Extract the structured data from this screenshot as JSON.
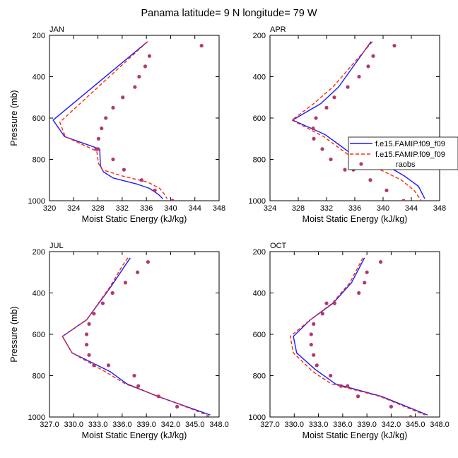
{
  "title": "Panama  latitude= 9 N longitude= 79 W",
  "legend_entries": [
    "f.e15.FAMIP.f09_f09",
    "f.e15.FAMIP.f09_f09",
    "raobs"
  ],
  "colors": {
    "model_a": "#1a1aff",
    "model_b": "#ff2a0a",
    "obs": "#b03a70",
    "axis": "#000000"
  },
  "chart_data": [
    {
      "type": "line",
      "panel_label": "JAN",
      "xlabel": "Moist Static Energy (kJ/kg)",
      "ylabel": "Pressure (mb)",
      "xlim": [
        320,
        348
      ],
      "ylim": [
        1000,
        200
      ],
      "xticks": [
        320,
        324,
        328,
        332,
        336,
        340,
        344,
        348
      ],
      "xtick_labels": [
        "320",
        "324",
        "328",
        "332",
        "336",
        "340",
        "344",
        "348"
      ],
      "yticks": [
        200,
        400,
        600,
        800,
        1000
      ],
      "ytick_labels": [
        "200",
        "400",
        "600",
        "800",
        "1000"
      ],
      "series": [
        {
          "name": "f.e15.FAMIP.f09_f09",
          "style": "solid",
          "x": [
            336.2,
            320.6,
            322.5,
            328.3,
            328.4,
            328.9,
            330.5,
            334.5,
            336.5,
            338.0,
            338.7
          ],
          "y": [
            230,
            610,
            690,
            750,
            830,
            860,
            890,
            920,
            940,
            970,
            990
          ]
        },
        {
          "name": "f.e15.FAMIP.f09_f09",
          "style": "dashed",
          "x": [
            336.2,
            321.7,
            322.6,
            327.8,
            328.1,
            328.7,
            332.0,
            336.2,
            338.2,
            339.0,
            339.4
          ],
          "y": [
            230,
            620,
            690,
            760,
            820,
            850,
            880,
            910,
            940,
            970,
            990
          ]
        },
        {
          "name": "raobs",
          "style": "markers",
          "x": [
            345.1,
            336.5,
            335.8,
            334.8,
            334.1,
            332.1,
            330.5,
            329.3,
            328.6,
            328.1,
            327.7,
            328.0,
            330.5,
            332.3,
            335.2,
            337.4,
            340.3
          ],
          "y": [
            250,
            300,
            350,
            400,
            450,
            500,
            550,
            600,
            650,
            700,
            750,
            750,
            800,
            850,
            900,
            950,
            1000
          ]
        }
      ]
    },
    {
      "type": "line",
      "panel_label": "APR",
      "xlabel": "Moist Static Energy (kJ/kg)",
      "ylabel": "",
      "xlim": [
        324,
        348
      ],
      "ylim": [
        1000,
        200
      ],
      "xticks": [
        324,
        328,
        332,
        336,
        340,
        344,
        348
      ],
      "xtick_labels": [
        "324",
        "328",
        "332",
        "336",
        "340",
        "344",
        "348"
      ],
      "yticks": [
        200,
        400,
        600,
        800,
        1000
      ],
      "ytick_labels": [
        "200",
        "400",
        "600",
        "800",
        "1000"
      ],
      "series": [
        {
          "name": "f.e15.FAMIP.f09_f09",
          "style": "solid",
          "x": [
            338.3,
            333.7,
            331.2,
            327.2,
            331.8,
            333.8,
            335.0,
            339.5,
            343.0,
            345.0,
            345.9
          ],
          "y": [
            230,
            450,
            530,
            610,
            680,
            730,
            760,
            810,
            880,
            930,
            990
          ]
        },
        {
          "name": "f.e15.FAMIP.f09_f09",
          "style": "dashed",
          "x": [
            338.5,
            332.9,
            330.2,
            327.1,
            331.6,
            333.6,
            336.0,
            339.6,
            342.6,
            344.4,
            345.4
          ],
          "y": [
            230,
            450,
            530,
            610,
            690,
            740,
            800,
            850,
            900,
            950,
            1000
          ]
        },
        {
          "name": "raobs",
          "style": "markers",
          "x": [
            341.6,
            338.6,
            337.9,
            336.6,
            335.0,
            333.1,
            332.0,
            330.5,
            330.1,
            330.2,
            331.4,
            332.6,
            334.6,
            335.8,
            338.2,
            340.5,
            342.9
          ],
          "y": [
            250,
            300,
            350,
            400,
            450,
            500,
            550,
            600,
            650,
            700,
            750,
            800,
            850,
            850,
            900,
            950,
            1000
          ]
        }
      ]
    },
    {
      "type": "line",
      "panel_label": "JUL",
      "xlabel": "Moist Static Energy (kJ/kg)",
      "ylabel": "Pressure (mb)",
      "xlim": [
        327,
        348
      ],
      "ylim": [
        1000,
        200
      ],
      "xticks": [
        327,
        330,
        333,
        336,
        339,
        342,
        345,
        348
      ],
      "xtick_labels": [
        "327.0",
        "330.0",
        "333.0",
        "336.0",
        "339.0",
        "342.0",
        "345.0",
        "348.0"
      ],
      "yticks": [
        200,
        400,
        600,
        800,
        1000
      ],
      "ytick_labels": [
        "200",
        "400",
        "600",
        "800",
        "1000"
      ],
      "series": [
        {
          "name": "f.e15.FAMIP.f09_f09",
          "style": "solid",
          "x": [
            337.0,
            334.6,
            331.6,
            328.6,
            329.8,
            334.5,
            336.6,
            340.4,
            346.9
          ],
          "y": [
            230,
            370,
            530,
            610,
            690,
            780,
            840,
            900,
            990
          ]
        },
        {
          "name": "f.e15.FAMIP.f09_f09",
          "style": "dashed",
          "x": [
            336.7,
            336.0,
            334.5,
            331.6,
            328.6,
            329.8,
            334.3,
            336.4,
            340.5,
            346.5
          ],
          "y": [
            230,
            270,
            370,
            530,
            610,
            690,
            790,
            840,
            900,
            990
          ]
        },
        {
          "name": "raobs",
          "style": "markers",
          "x": [
            339.2,
            337.9,
            336.4,
            334.8,
            333.6,
            332.5,
            331.9,
            331.6,
            331.6,
            331.9,
            332.5,
            334.3,
            337.5,
            338.0,
            340.5,
            342.8,
            346.6
          ],
          "y": [
            250,
            300,
            350,
            400,
            450,
            500,
            550,
            600,
            650,
            700,
            750,
            750,
            800,
            850,
            900,
            950,
            1000
          ]
        }
      ]
    },
    {
      "type": "line",
      "panel_label": "OCT",
      "xlabel": "Moist Static Energy (kJ/kg)",
      "ylabel": "",
      "xlim": [
        327,
        348
      ],
      "ylim": [
        1000,
        200
      ],
      "xticks": [
        327,
        330,
        333,
        336,
        339,
        342,
        345,
        348
      ],
      "xtick_labels": [
        "327.0",
        "330.0",
        "333.0",
        "336.0",
        "339.0",
        "342.0",
        "345.0",
        "348.0"
      ],
      "yticks": [
        200,
        400,
        600,
        800,
        1000
      ],
      "ytick_labels": [
        "200",
        "400",
        "600",
        "800",
        "1000"
      ],
      "series": [
        {
          "name": "f.e15.FAMIP.f09_f09",
          "style": "solid",
          "x": [
            338.7,
            337.1,
            334.8,
            332.0,
            329.9,
            330.3,
            332.6,
            335.1,
            340.8,
            346.5
          ],
          "y": [
            230,
            350,
            450,
            530,
            610,
            690,
            770,
            840,
            900,
            990
          ]
        },
        {
          "name": "f.e15.FAMIP.f09_f09",
          "style": "dashed",
          "x": [
            338.5,
            336.9,
            334.7,
            332.0,
            329.5,
            329.9,
            332.3,
            334.6,
            340.6,
            346.2
          ],
          "y": [
            230,
            350,
            450,
            530,
            610,
            690,
            780,
            840,
            900,
            990
          ]
        },
        {
          "name": "raobs",
          "style": "markers",
          "x": [
            340.7,
            339.0,
            338.7,
            338.0,
            335.0,
            334.0,
            333.5,
            332.4,
            332.1,
            332.1,
            332.4,
            332.8,
            334.5,
            335.8,
            336.6,
            337.9,
            342.0,
            344.4
          ],
          "y": [
            250,
            300,
            350,
            400,
            450,
            450,
            500,
            550,
            600,
            650,
            700,
            750,
            800,
            850,
            850,
            900,
            950,
            1000
          ]
        }
      ]
    }
  ]
}
